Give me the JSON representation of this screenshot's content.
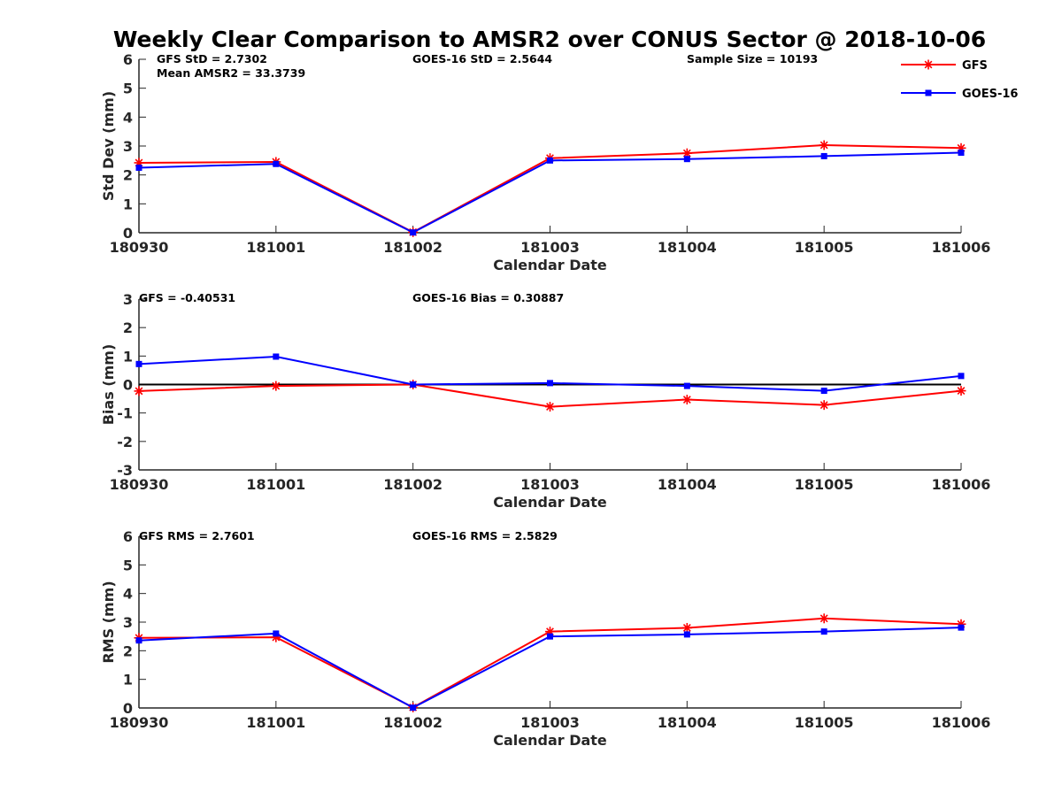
{
  "title": "Weekly Clear Comparison to AMSR2 over CONUS Sector @ 2018-10-06",
  "legend": {
    "placement": "top-right",
    "entries": [
      {
        "label": "GFS",
        "color": "#ff0000",
        "marker": "asterisk"
      },
      {
        "label": "GOES-16",
        "color": "#0000ff",
        "marker": "square"
      }
    ]
  },
  "chart_data": [
    {
      "type": "line",
      "id": "std",
      "xlabel": "Calendar Date",
      "ylabel": "Std Dev (mm)",
      "categories": [
        "180930",
        "181001",
        "181002",
        "181003",
        "181004",
        "181005",
        "181006"
      ],
      "ylim": [
        0,
        6
      ],
      "yticks": [
        "0",
        "1",
        "2",
        "3",
        "4",
        "5",
        "6"
      ],
      "zero_line": false,
      "annotations": [
        "GFS StD = 2.7302",
        "Mean AMSR2 = 33.3739",
        "GOES-16 StD = 2.5644",
        "Sample Size = 10193"
      ],
      "series": [
        {
          "name": "GFS",
          "color": "#ff0000",
          "marker": "asterisk",
          "values": [
            2.42,
            2.45,
            0.02,
            2.58,
            2.75,
            3.03,
            2.93
          ]
        },
        {
          "name": "GOES-16",
          "color": "#0000ff",
          "marker": "square",
          "values": [
            2.25,
            2.38,
            0.01,
            2.5,
            2.55,
            2.65,
            2.77
          ]
        }
      ]
    },
    {
      "type": "line",
      "id": "bias",
      "xlabel": "Calendar Date",
      "ylabel": "Bias (mm)",
      "categories": [
        "180930",
        "181001",
        "181002",
        "181003",
        "181004",
        "181005",
        "181006"
      ],
      "ylim": [
        -3,
        3
      ],
      "yticks": [
        "-3",
        "-2",
        "-1",
        "0",
        "1",
        "2",
        "3"
      ],
      "zero_line": true,
      "annotations": [
        "GFS = -0.40531",
        "GOES-16 Bias  = 0.30887"
      ],
      "series": [
        {
          "name": "GFS",
          "color": "#ff0000",
          "marker": "asterisk",
          "values": [
            -0.23,
            -0.05,
            0.0,
            -0.78,
            -0.53,
            -0.72,
            -0.22
          ]
        },
        {
          "name": "GOES-16",
          "color": "#0000ff",
          "marker": "square",
          "values": [
            0.72,
            0.98,
            0.0,
            0.05,
            -0.05,
            -0.22,
            0.3
          ]
        }
      ]
    },
    {
      "type": "line",
      "id": "rms",
      "xlabel": "Calendar Date",
      "ylabel": "RMS (mm)",
      "categories": [
        "180930",
        "181001",
        "181002",
        "181003",
        "181004",
        "181005",
        "181006"
      ],
      "ylim": [
        0,
        6
      ],
      "yticks": [
        "0",
        "1",
        "2",
        "3",
        "4",
        "5",
        "6"
      ],
      "zero_line": false,
      "annotations": [
        "GFS RMS = 2.7601",
        "GOES-16 RMS = 2.5829"
      ],
      "series": [
        {
          "name": "GFS",
          "color": "#ff0000",
          "marker": "asterisk",
          "values": [
            2.45,
            2.47,
            0.02,
            2.67,
            2.8,
            3.13,
            2.93
          ]
        },
        {
          "name": "GOES-16",
          "color": "#0000ff",
          "marker": "square",
          "values": [
            2.36,
            2.6,
            0.01,
            2.5,
            2.57,
            2.67,
            2.81
          ]
        }
      ]
    }
  ]
}
